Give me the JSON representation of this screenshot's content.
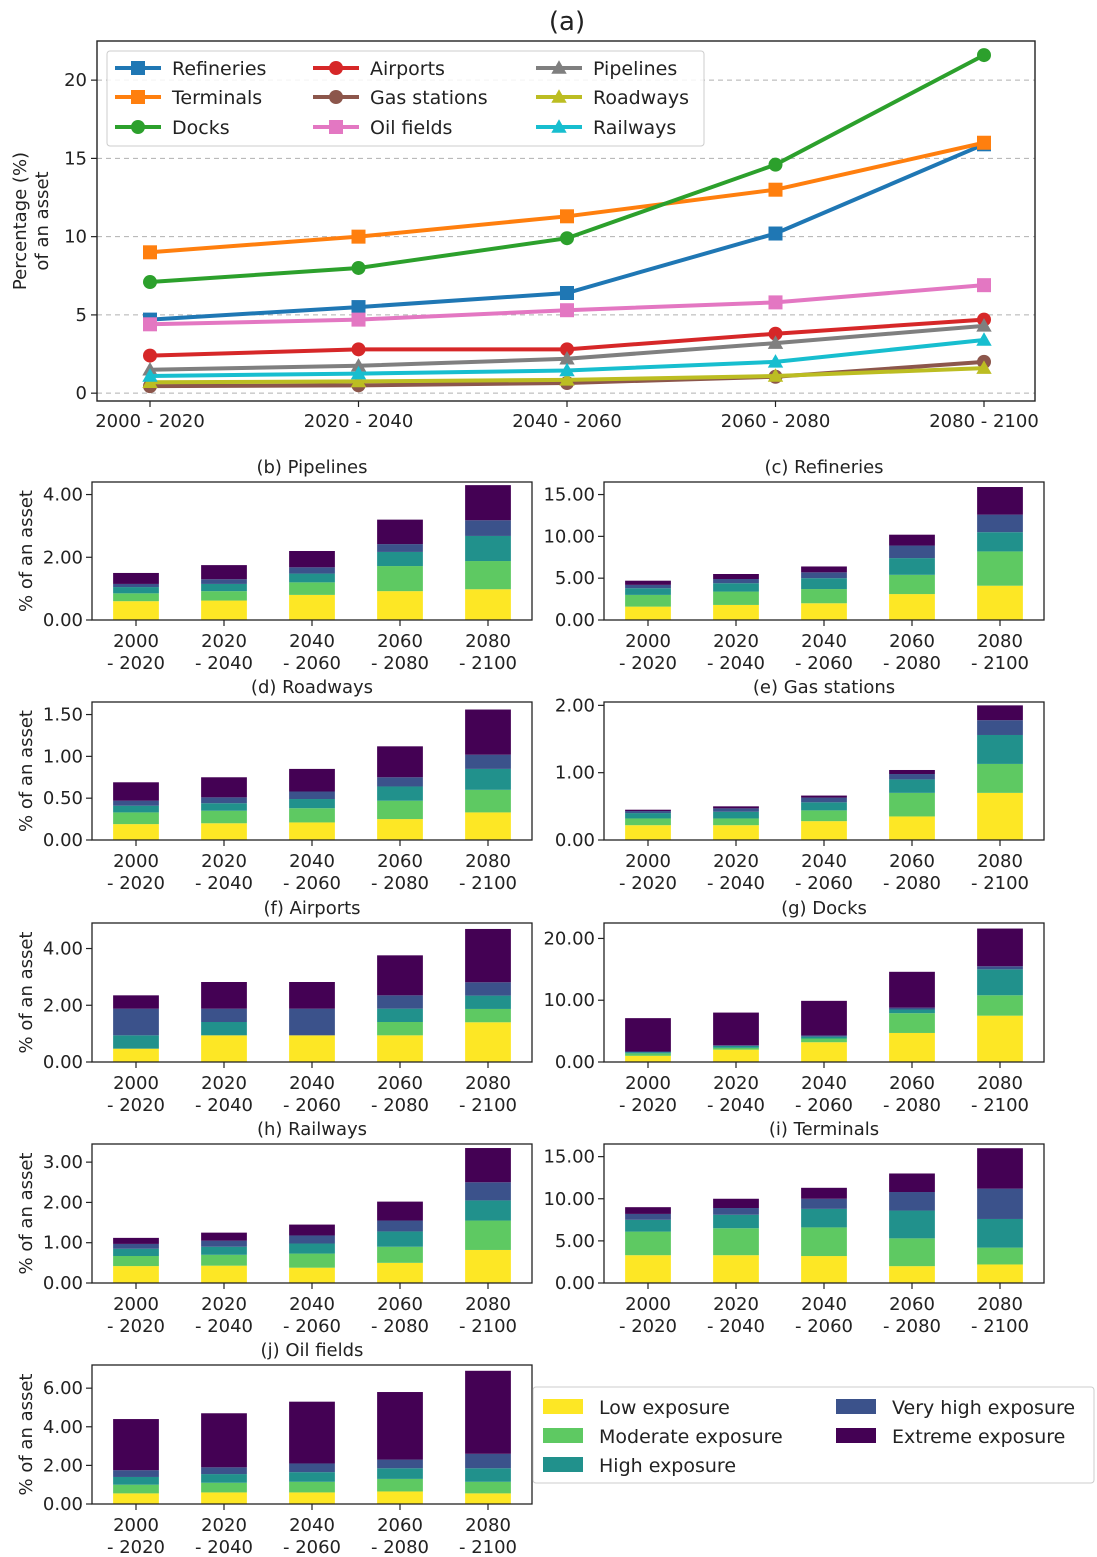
{
  "figure": {
    "main_title": "(a)",
    "exposure_legend": [
      "Low exposure",
      "Moderate exposure",
      "High exposure",
      "Very high exposure",
      "Extreme exposure"
    ],
    "exposure_colors": [
      "#fde725",
      "#5ec962",
      "#21918c",
      "#3b528b",
      "#440154"
    ]
  },
  "chart_data": [
    {
      "id": "a",
      "type": "line",
      "title": "(a)",
      "xlabel": "",
      "ylabel": "Percentage (%) of an asset",
      "ylabel_lines": [
        "Percentage (%)",
        "of an asset"
      ],
      "categories": [
        "2000 - 2020",
        "2020 - 2040",
        "2040 - 2060",
        "2060 - 2080",
        "2080 - 2100"
      ],
      "ylim": [
        -0.5,
        22.5
      ],
      "yticks": [
        0,
        5,
        10,
        15,
        20
      ],
      "grid": "horizontal dashed",
      "legend_position": "top-left",
      "series": [
        {
          "name": "Refineries",
          "color": "#1f77b4",
          "marker": "square",
          "values": [
            4.7,
            5.5,
            6.4,
            10.2,
            15.9
          ]
        },
        {
          "name": "Terminals",
          "color": "#ff7f0e",
          "marker": "square",
          "values": [
            9.0,
            10.0,
            11.3,
            13.0,
            16.0
          ]
        },
        {
          "name": "Docks",
          "color": "#2ca02c",
          "marker": "circle",
          "values": [
            7.1,
            8.0,
            9.9,
            14.6,
            21.6
          ]
        },
        {
          "name": "Airports",
          "color": "#d62728",
          "marker": "circle",
          "values": [
            2.4,
            2.8,
            2.8,
            3.8,
            4.7
          ]
        },
        {
          "name": "Gas stations",
          "color": "#8c564b",
          "marker": "circle",
          "values": [
            0.45,
            0.5,
            0.65,
            1.05,
            2.0
          ]
        },
        {
          "name": "Oil fields",
          "color": "#e377c2",
          "marker": "square",
          "values": [
            4.4,
            4.7,
            5.3,
            5.8,
            6.9
          ]
        },
        {
          "name": "Pipelines",
          "color": "#7f7f7f",
          "marker": "triangle",
          "values": [
            1.5,
            1.75,
            2.2,
            3.2,
            4.3
          ]
        },
        {
          "name": "Roadways",
          "color": "#bcbd22",
          "marker": "triangle",
          "values": [
            0.7,
            0.75,
            0.85,
            1.1,
            1.6
          ]
        },
        {
          "name": "Railways",
          "color": "#17becf",
          "marker": "triangle",
          "values": [
            1.1,
            1.25,
            1.45,
            2.0,
            3.4
          ]
        }
      ]
    },
    {
      "id": "b",
      "type": "bar",
      "stacked": true,
      "title": "(b) Pipelines",
      "ylabel": "% of an asset",
      "categories": [
        "2000\n- 2020",
        "2020\n- 2040",
        "2040\n- 2060",
        "2060\n- 2080",
        "2080\n- 2100"
      ],
      "ylim": [
        0,
        4.4
      ],
      "yticks": [
        "0.00",
        "2.00",
        "4.00"
      ],
      "series": [
        {
          "name": "Low exposure",
          "values": [
            0.6,
            0.62,
            0.8,
            0.92,
            0.98
          ]
        },
        {
          "name": "Moderate exposure",
          "values": [
            0.25,
            0.3,
            0.4,
            0.8,
            0.9
          ]
        },
        {
          "name": "High exposure",
          "values": [
            0.2,
            0.23,
            0.28,
            0.45,
            0.8
          ]
        },
        {
          "name": "Very high exposure",
          "values": [
            0.1,
            0.15,
            0.2,
            0.25,
            0.5
          ]
        },
        {
          "name": "Extreme exposure",
          "values": [
            0.35,
            0.45,
            0.52,
            0.78,
            1.12
          ]
        }
      ]
    },
    {
      "id": "c",
      "type": "bar",
      "stacked": true,
      "title": "(c) Refineries",
      "ylabel": "",
      "categories": [
        "2000\n- 2020",
        "2020\n- 2040",
        "2040\n- 2060",
        "2060\n- 2080",
        "2080\n- 2100"
      ],
      "ylim": [
        0,
        16.5
      ],
      "yticks": [
        "0.00",
        "5.00",
        "10.00",
        "15.00"
      ],
      "series": [
        {
          "name": "Low exposure",
          "values": [
            1.6,
            1.8,
            2.0,
            3.1,
            4.1
          ]
        },
        {
          "name": "Moderate exposure",
          "values": [
            1.4,
            1.6,
            1.7,
            2.3,
            4.1
          ]
        },
        {
          "name": "High exposure",
          "values": [
            0.8,
            1.0,
            1.3,
            2.0,
            2.3
          ]
        },
        {
          "name": "Very high exposure",
          "values": [
            0.4,
            0.5,
            0.7,
            1.5,
            2.1
          ]
        },
        {
          "name": "Extreme exposure",
          "values": [
            0.5,
            0.6,
            0.7,
            1.3,
            3.3
          ]
        }
      ]
    },
    {
      "id": "d",
      "type": "bar",
      "stacked": true,
      "title": "(d) Roadways",
      "ylabel": "% of an asset",
      "categories": [
        "2000\n- 2020",
        "2020\n- 2040",
        "2040\n- 2060",
        "2060\n- 2080",
        "2080\n- 2100"
      ],
      "ylim": [
        0,
        1.65
      ],
      "yticks": [
        "0.00",
        "0.50",
        "1.00",
        "1.50"
      ],
      "series": [
        {
          "name": "Low exposure",
          "values": [
            0.19,
            0.2,
            0.21,
            0.25,
            0.33
          ]
        },
        {
          "name": "Moderate exposure",
          "values": [
            0.14,
            0.15,
            0.17,
            0.22,
            0.27
          ]
        },
        {
          "name": "High exposure",
          "values": [
            0.08,
            0.09,
            0.11,
            0.17,
            0.25
          ]
        },
        {
          "name": "Very high exposure",
          "values": [
            0.06,
            0.07,
            0.09,
            0.11,
            0.17
          ]
        },
        {
          "name": "Extreme exposure",
          "values": [
            0.22,
            0.24,
            0.27,
            0.37,
            0.54
          ]
        }
      ]
    },
    {
      "id": "e",
      "type": "bar",
      "stacked": true,
      "title": "(e) Gas stations",
      "ylabel": "",
      "categories": [
        "2000\n- 2020",
        "2020\n- 2040",
        "2040\n- 2060",
        "2060\n- 2080",
        "2080\n- 2100"
      ],
      "ylim": [
        0,
        2.05
      ],
      "yticks": [
        "0.00",
        "1.00",
        "2.00"
      ],
      "series": [
        {
          "name": "Low exposure",
          "values": [
            0.22,
            0.22,
            0.28,
            0.35,
            0.7
          ]
        },
        {
          "name": "Moderate exposure",
          "values": [
            0.1,
            0.1,
            0.16,
            0.35,
            0.43
          ]
        },
        {
          "name": "High exposure",
          "values": [
            0.08,
            0.1,
            0.12,
            0.2,
            0.43
          ]
        },
        {
          "name": "Very high exposure",
          "values": [
            0.03,
            0.05,
            0.07,
            0.08,
            0.22
          ]
        },
        {
          "name": "Extreme exposure",
          "values": [
            0.02,
            0.03,
            0.03,
            0.06,
            0.22
          ]
        }
      ]
    },
    {
      "id": "f",
      "type": "bar",
      "stacked": true,
      "title": "(f) Airports",
      "ylabel": "% of an asset",
      "categories": [
        "2000\n- 2020",
        "2020\n- 2040",
        "2040\n- 2060",
        "2060\n- 2080",
        "2080\n- 2100"
      ],
      "ylim": [
        0,
        4.9
      ],
      "yticks": [
        "0.00",
        "2.00",
        "4.00"
      ],
      "series": [
        {
          "name": "Low exposure",
          "values": [
            0.47,
            0.94,
            0.94,
            0.94,
            1.4
          ]
        },
        {
          "name": "Moderate exposure",
          "values": [
            0.0,
            0.0,
            0.0,
            0.47,
            0.47
          ]
        },
        {
          "name": "High exposure",
          "values": [
            0.47,
            0.47,
            0.0,
            0.47,
            0.47
          ]
        },
        {
          "name": "Very high exposure",
          "values": [
            0.94,
            0.47,
            0.94,
            0.47,
            0.47
          ]
        },
        {
          "name": "Extreme exposure",
          "values": [
            0.47,
            0.94,
            0.94,
            1.41,
            1.88
          ]
        }
      ]
    },
    {
      "id": "g",
      "type": "bar",
      "stacked": true,
      "title": "(g) Docks",
      "ylabel": "",
      "categories": [
        "2000\n- 2020",
        "2020\n- 2040",
        "2040\n- 2060",
        "2060\n- 2080",
        "2080\n- 2100"
      ],
      "ylim": [
        0,
        22.5
      ],
      "yticks": [
        "0.00",
        "10.00",
        "20.00"
      ],
      "series": [
        {
          "name": "Low exposure",
          "values": [
            1.0,
            2.0,
            3.2,
            4.7,
            7.5
          ]
        },
        {
          "name": "Moderate exposure",
          "values": [
            0.4,
            0.3,
            0.6,
            3.2,
            3.3
          ]
        },
        {
          "name": "High exposure",
          "values": [
            0.2,
            0.3,
            0.3,
            0.6,
            4.2
          ]
        },
        {
          "name": "Very high exposure",
          "values": [
            0.1,
            0.1,
            0.2,
            0.3,
            0.5
          ]
        },
        {
          "name": "Extreme exposure",
          "values": [
            5.4,
            5.3,
            5.6,
            5.8,
            6.1
          ]
        }
      ]
    },
    {
      "id": "h",
      "type": "bar",
      "stacked": true,
      "title": "(h) Railways",
      "ylabel": "% of an asset",
      "categories": [
        "2000\n- 2020",
        "2020\n- 2040",
        "2040\n- 2060",
        "2060\n- 2080",
        "2080\n- 2100"
      ],
      "ylim": [
        0,
        3.45
      ],
      "yticks": [
        "0.00",
        "1.00",
        "2.00",
        "3.00"
      ],
      "series": [
        {
          "name": "Low exposure",
          "values": [
            0.42,
            0.43,
            0.38,
            0.5,
            0.82
          ]
        },
        {
          "name": "Moderate exposure",
          "values": [
            0.25,
            0.27,
            0.35,
            0.4,
            0.73
          ]
        },
        {
          "name": "High exposure",
          "values": [
            0.18,
            0.2,
            0.25,
            0.38,
            0.5
          ]
        },
        {
          "name": "Very high exposure",
          "values": [
            0.12,
            0.15,
            0.2,
            0.27,
            0.45
          ]
        },
        {
          "name": "Extreme exposure",
          "values": [
            0.15,
            0.2,
            0.27,
            0.47,
            0.85
          ]
        }
      ]
    },
    {
      "id": "i",
      "type": "bar",
      "stacked": true,
      "title": "(i) Terminals",
      "ylabel": "",
      "categories": [
        "2000\n- 2020",
        "2020\n- 2040",
        "2040\n- 2060",
        "2060\n- 2080",
        "2080\n- 2100"
      ],
      "ylim": [
        0,
        16.5
      ],
      "yticks": [
        "0.00",
        "5.00",
        "10.00",
        "15.00"
      ],
      "series": [
        {
          "name": "Low exposure",
          "values": [
            3.3,
            3.3,
            3.2,
            2.0,
            2.2
          ]
        },
        {
          "name": "Moderate exposure",
          "values": [
            2.8,
            3.2,
            3.4,
            3.3,
            2.0
          ]
        },
        {
          "name": "High exposure",
          "values": [
            1.4,
            1.6,
            2.2,
            3.3,
            3.4
          ]
        },
        {
          "name": "Very high exposure",
          "values": [
            0.7,
            0.8,
            1.2,
            2.2,
            3.6
          ]
        },
        {
          "name": "Extreme exposure",
          "values": [
            0.8,
            1.1,
            1.3,
            2.2,
            4.8
          ]
        }
      ]
    },
    {
      "id": "j",
      "type": "bar",
      "stacked": true,
      "title": "(j) Oil fields",
      "ylabel": "% of an asset",
      "categories": [
        "2000\n- 2020",
        "2020\n- 2040",
        "2040\n- 2060",
        "2060\n- 2080",
        "2080\n- 2100"
      ],
      "ylim": [
        0,
        7.2
      ],
      "yticks": [
        "0.00",
        "2.00",
        "4.00",
        "6.00"
      ],
      "series": [
        {
          "name": "Low exposure",
          "values": [
            0.55,
            0.6,
            0.6,
            0.65,
            0.55
          ]
        },
        {
          "name": "Moderate exposure",
          "values": [
            0.45,
            0.5,
            0.55,
            0.65,
            0.6
          ]
        },
        {
          "name": "High exposure",
          "values": [
            0.4,
            0.45,
            0.5,
            0.55,
            0.7
          ]
        },
        {
          "name": "Very high exposure",
          "values": [
            0.35,
            0.35,
            0.45,
            0.45,
            0.75
          ]
        },
        {
          "name": "Extreme exposure",
          "values": [
            2.65,
            2.8,
            3.2,
            3.5,
            4.3
          ]
        }
      ]
    }
  ]
}
